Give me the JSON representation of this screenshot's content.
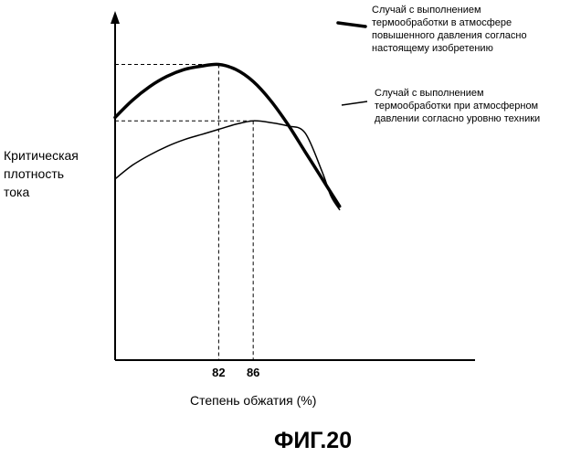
{
  "chart_data": {
    "type": "line",
    "ylabel_lines": [
      "Критическая",
      "плотность",
      "тока"
    ],
    "xlabel": "Степень обжатия (%)",
    "x_ticks": [
      "82",
      "86"
    ],
    "xlim": [
      70,
      99
    ],
    "ylim": [
      0,
      1
    ],
    "series": [
      {
        "key": "high_pressure",
        "legend_lines": [
          "Случай с выполнением",
          "термообработки в атмосфере",
          "повышенного давления согласно",
          "настоящему изобретению"
        ],
        "style": "thick",
        "x": [
          70,
          72,
          74,
          76,
          78,
          80,
          82,
          84,
          86,
          88,
          90,
          92,
          94,
          95,
          96
        ],
        "y": [
          0.71,
          0.76,
          0.8,
          0.83,
          0.85,
          0.86,
          0.865,
          0.85,
          0.815,
          0.76,
          0.69,
          0.61,
          0.53,
          0.49,
          0.45
        ]
      },
      {
        "key": "atmospheric",
        "legend_lines": [
          "Случай с выполнением",
          "термообработки при атмосферном",
          "давлении согласно уровню техники"
        ],
        "style": "thin",
        "x": [
          70,
          72,
          74,
          76,
          78,
          80,
          82,
          84,
          86,
          88,
          90,
          92,
          94,
          95,
          96
        ],
        "y": [
          0.53,
          0.57,
          0.6,
          0.625,
          0.645,
          0.66,
          0.675,
          0.69,
          0.7,
          0.695,
          0.685,
          0.665,
          0.55,
          0.48,
          0.44
        ]
      }
    ],
    "reference_lines": [
      {
        "x": 82,
        "y": 0.865
      },
      {
        "x": 86,
        "y": 0.7
      }
    ]
  },
  "caption": "ФИГ.20"
}
